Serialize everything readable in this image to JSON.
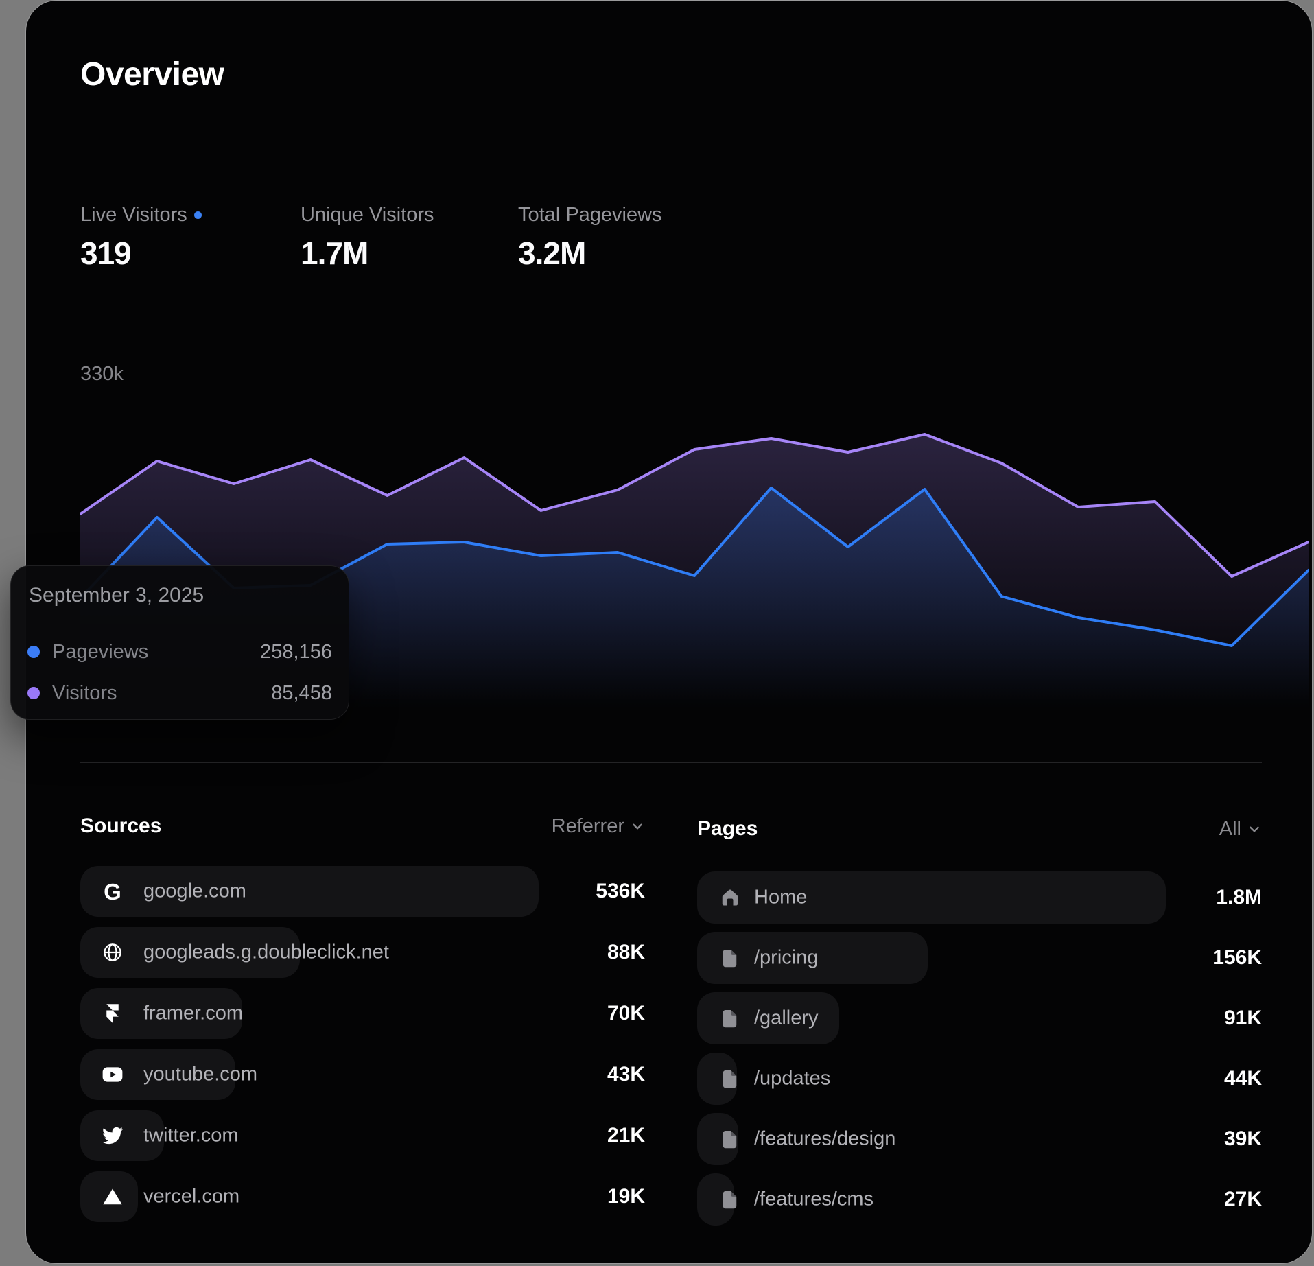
{
  "page": {
    "title": "Overview"
  },
  "stats": [
    {
      "label": "Live Visitors",
      "value": "319",
      "live_dot_color": "#3b82f6"
    },
    {
      "label": "Unique Visitors",
      "value": "1.7M"
    },
    {
      "label": "Total Pageviews",
      "value": "3.2M"
    }
  ],
  "chart_data": {
    "type": "line",
    "title": "",
    "xlabel": "",
    "ylabel": "",
    "y_axis_top_label": "330k",
    "ylim_k": [
      0,
      330
    ],
    "grid": false,
    "legend_position": "tooltip",
    "series": [
      {
        "name": "Visitors",
        "color": "#a685f7",
        "values_k": [
          209,
          255,
          235,
          256,
          225,
          258,
          212,
          230,
          265,
          275,
          263,
          278,
          253,
          215,
          220,
          155,
          185
        ],
        "svg_y": [
          248,
          171,
          204,
          169,
          221,
          166,
          243,
          213,
          154,
          138,
          158,
          132,
          174,
          238,
          230,
          339,
          289
        ]
      },
      {
        "name": "Pageviews",
        "color": "#2f7df6",
        "values_k": [
          136,
          206,
          145,
          147,
          183,
          185,
          173,
          176,
          156,
          232,
          181,
          231,
          138,
          120,
          109,
          95,
          161
        ],
        "svg_y": [
          371,
          253,
          356,
          352,
          292,
          289,
          309,
          304,
          338,
          210,
          296,
          212,
          368,
          399,
          417,
          440,
          330
        ]
      }
    ],
    "tooltip": {
      "date": "September 3, 2025",
      "rows": [
        {
          "label": "Pageviews",
          "value": "258,156",
          "color": "#3b7df7"
        },
        {
          "label": "Visitors",
          "value": "85,458",
          "color": "#9a79f8"
        }
      ]
    }
  },
  "sources": {
    "title": "Sources",
    "filter_label": "Referrer",
    "rows": [
      {
        "icon": "google-icon",
        "label": "google.com",
        "value": "536K",
        "bar": 668
      },
      {
        "icon": "globe-icon",
        "label": "googleads.g.doubleclick.net",
        "value": "88K",
        "bar": 320
      },
      {
        "icon": "framer-icon",
        "label": "framer.com",
        "value": "70K",
        "bar": 236
      },
      {
        "icon": "youtube-icon",
        "label": "youtube.com",
        "value": "43K",
        "bar": 226
      },
      {
        "icon": "twitter-icon",
        "label": "twitter.com",
        "value": "21K",
        "bar": 122
      },
      {
        "icon": "vercel-icon",
        "label": "vercel.com",
        "value": "19K",
        "bar": 84
      }
    ]
  },
  "pages": {
    "title": "Pages",
    "filter_label": "All",
    "rows": [
      {
        "icon": "home-icon",
        "label": "Home",
        "value": "1.8M",
        "bar": 683
      },
      {
        "icon": "file-icon",
        "label": "/pricing",
        "value": "156K",
        "bar": 336
      },
      {
        "icon": "file-icon",
        "label": "/gallery",
        "value": "91K",
        "bar": 207
      },
      {
        "icon": "file-icon",
        "label": "/updates",
        "value": "44K",
        "bar": 58
      },
      {
        "icon": "file-icon",
        "label": "/features/design",
        "value": "39K",
        "bar": 60
      },
      {
        "icon": "file-icon",
        "label": "/features/cms",
        "value": "27K",
        "bar": 54
      }
    ]
  }
}
